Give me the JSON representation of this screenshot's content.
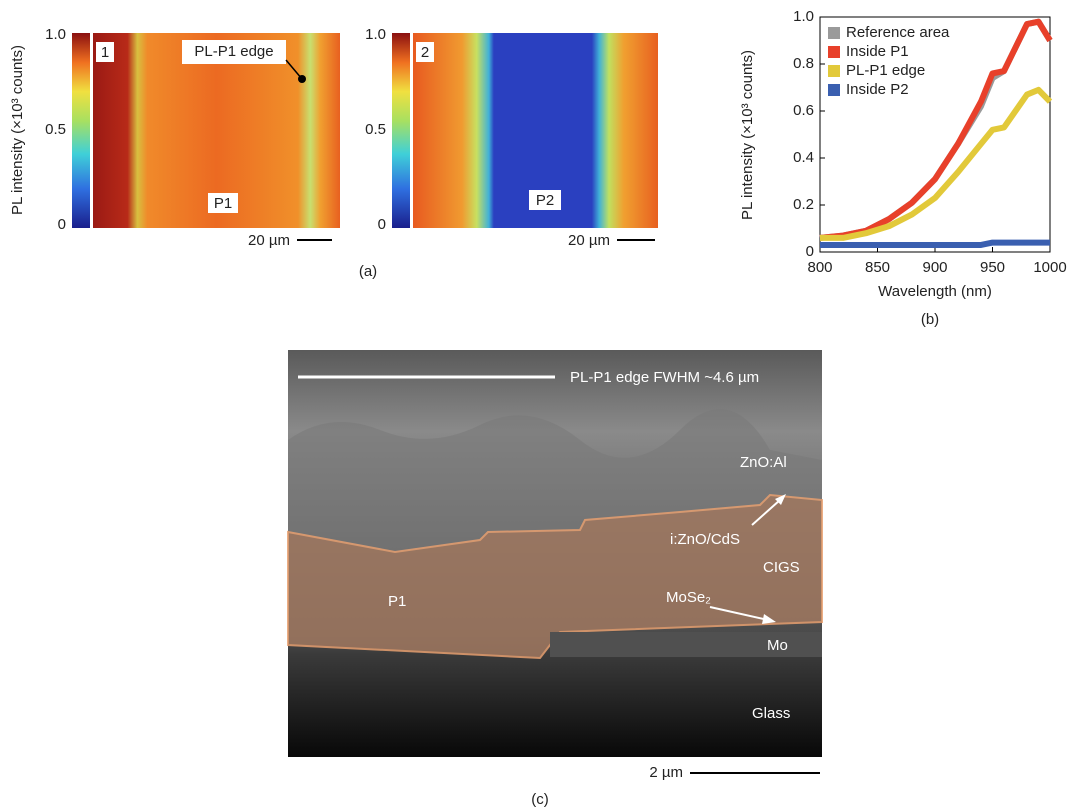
{
  "panel_a": {
    "y_label": "PL intensity (×10³ counts)",
    "colorbar_lim": [
      0,
      1
    ],
    "colorbar_ticks": [
      {
        "value": 1,
        "label": "1.0"
      },
      0.5,
      0
    ],
    "map1": {
      "index": "1",
      "edge_label": "PL-P1 edge",
      "scribe_label": "P1",
      "scale_bar": "20 µm"
    },
    "map2": {
      "index": "2",
      "scribe_label": "P2",
      "scale_bar": "20 µm"
    },
    "caption": "(a)"
  },
  "chart_data": {
    "type": "line",
    "x_label": "Wavelength (nm)",
    "y_label": "PL intensity (×10³ counts)",
    "x": [
      800,
      820,
      840,
      860,
      880,
      900,
      920,
      940,
      950,
      960,
      970,
      980,
      990,
      1000
    ],
    "series": [
      {
        "name": "Reference area",
        "color": "#9a9a9a",
        "values": [
          0.06,
          0.07,
          0.09,
          0.14,
          0.21,
          0.31,
          0.46,
          0.62,
          0.74,
          0.77,
          0.87,
          0.97,
          0.98,
          0.9
        ]
      },
      {
        "name": "Inside P1",
        "color": "#e8402a",
        "values": [
          0.06,
          0.07,
          0.09,
          0.14,
          0.21,
          0.31,
          0.46,
          0.64,
          0.76,
          0.77,
          0.87,
          0.97,
          0.98,
          0.9
        ]
      },
      {
        "name": "PL-P1 edge",
        "color": "#e2c93a",
        "values": [
          0.06,
          0.06,
          0.08,
          0.11,
          0.16,
          0.23,
          0.34,
          0.46,
          0.52,
          0.53,
          0.6,
          0.67,
          0.69,
          0.64
        ]
      },
      {
        "name": "Inside P2",
        "color": "#3a5fb0",
        "values": [
          0.03,
          0.03,
          0.03,
          0.03,
          0.03,
          0.03,
          0.03,
          0.03,
          0.04,
          0.04,
          0.04,
          0.04,
          0.04,
          0.04
        ]
      }
    ],
    "xlim": [
      800,
      1000
    ],
    "ylim": [
      0,
      1
    ],
    "xticks": [
      800,
      850,
      900,
      950,
      1000
    ],
    "yticks": [
      0,
      0.2,
      0.4,
      0.6,
      0.8,
      {
        "value": 1,
        "label": "1.0"
      }
    ],
    "legend": "upper left",
    "caption": "(b)"
  },
  "panel_c": {
    "fwhm_label": "PL-P1 edge FWHM ~4.6 µm",
    "layers": [
      "ZnO:Al",
      "i:ZnO/CdS",
      "CIGS",
      "MoSe₂",
      "Mo",
      "Glass"
    ],
    "scribe_label": "P1",
    "scale_bar": "2 µm",
    "caption": "(c)"
  }
}
